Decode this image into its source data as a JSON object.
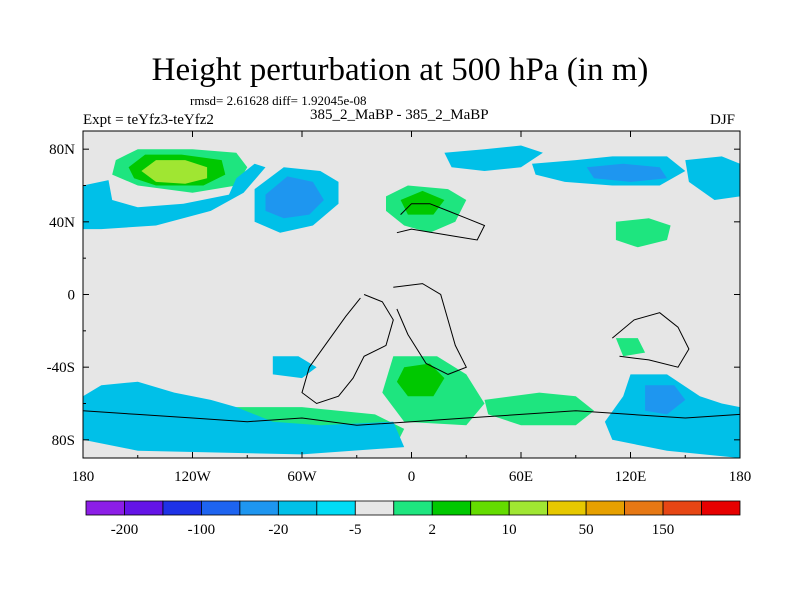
{
  "title": "Height perturbation at 500 hPa (in m)",
  "stats": "rmsd= 2.61628 diff= 1.92045e-08",
  "expt": "Expt = teYfz3-teYfz2",
  "case": "385_2_MaBP - 385_2_MaBP",
  "season": "DJF",
  "map": {
    "lon_range": [
      -180,
      180
    ],
    "lat_range": [
      -90,
      90
    ],
    "background_color": "#e6e6e6",
    "x_ticks": [
      {
        "lon": -180,
        "label": "180"
      },
      {
        "lon": -120,
        "label": "120W"
      },
      {
        "lon": -60,
        "label": "60W"
      },
      {
        "lon": 0,
        "label": "0"
      },
      {
        "lon": 60,
        "label": "60E"
      },
      {
        "lon": 120,
        "label": "120E"
      },
      {
        "lon": 180,
        "label": "180"
      }
    ],
    "y_ticks": [
      {
        "lat": 80,
        "label": "80N"
      },
      {
        "lat": 40,
        "label": "40N"
      },
      {
        "lat": 0,
        "label": "0"
      },
      {
        "lat": -40,
        "label": "-40S"
      },
      {
        "lat": -80,
        "label": "80S"
      }
    ],
    "regions": [
      {
        "name": "north-pacific-high",
        "color": "#1ee57f",
        "points": [
          [
            -162,
            74
          ],
          [
            -150,
            80
          ],
          [
            -120,
            80
          ],
          [
            -96,
            78
          ],
          [
            -90,
            70
          ],
          [
            -96,
            60
          ],
          [
            -120,
            56
          ],
          [
            -150,
            60
          ],
          [
            -164,
            66
          ]
        ]
      },
      {
        "name": "north-pacific-high-inner",
        "color": "#00c800",
        "points": [
          [
            -155,
            70
          ],
          [
            -146,
            77
          ],
          [
            -126,
            77
          ],
          [
            -104,
            74
          ],
          [
            -102,
            66
          ],
          [
            -114,
            60
          ],
          [
            -140,
            60
          ],
          [
            -152,
            64
          ]
        ]
      },
      {
        "name": "north-pacific-high-core",
        "color": "#a0e632",
        "points": [
          [
            -148,
            68
          ],
          [
            -140,
            74
          ],
          [
            -124,
            74
          ],
          [
            -112,
            70
          ],
          [
            -112,
            64
          ],
          [
            -124,
            61
          ],
          [
            -140,
            62
          ]
        ]
      },
      {
        "name": "north-pacific-band",
        "color": "#00c0e8",
        "points": [
          [
            -180,
            60
          ],
          [
            -166,
            63
          ],
          [
            -164,
            52
          ],
          [
            -150,
            48
          ],
          [
            -125,
            50
          ],
          [
            -100,
            55
          ],
          [
            -96,
            64
          ],
          [
            -86,
            72
          ],
          [
            -80,
            70
          ],
          [
            -92,
            56
          ],
          [
            -110,
            46
          ],
          [
            -140,
            38
          ],
          [
            -170,
            36
          ],
          [
            -180,
            36
          ]
        ]
      },
      {
        "name": "north-america-low",
        "color": "#00c0e8",
        "points": [
          [
            -86,
            58
          ],
          [
            -70,
            70
          ],
          [
            -50,
            68
          ],
          [
            -40,
            62
          ],
          [
            -40,
            50
          ],
          [
            -54,
            38
          ],
          [
            -72,
            34
          ],
          [
            -86,
            40
          ]
        ]
      },
      {
        "name": "north-america-low-core",
        "color": "#1e96f0",
        "points": [
          [
            -80,
            55
          ],
          [
            -68,
            65
          ],
          [
            -54,
            62
          ],
          [
            -48,
            52
          ],
          [
            -56,
            44
          ],
          [
            -70,
            42
          ],
          [
            -80,
            46
          ]
        ]
      },
      {
        "name": "europe-high",
        "color": "#1ee57f",
        "points": [
          [
            -14,
            54
          ],
          [
            -2,
            60
          ],
          [
            20,
            58
          ],
          [
            30,
            52
          ],
          [
            24,
            40
          ],
          [
            10,
            34
          ],
          [
            -4,
            38
          ],
          [
            -14,
            46
          ]
        ]
      },
      {
        "name": "europe-high-core",
        "color": "#00c800",
        "points": [
          [
            -6,
            52
          ],
          [
            6,
            57
          ],
          [
            18,
            52
          ],
          [
            12,
            44
          ],
          [
            -2,
            44
          ]
        ]
      },
      {
        "name": "arctic-low",
        "color": "#00c0e8",
        "points": [
          [
            18,
            78
          ],
          [
            40,
            80
          ],
          [
            60,
            82
          ],
          [
            72,
            78
          ],
          [
            60,
            70
          ],
          [
            40,
            68
          ],
          [
            22,
            70
          ]
        ]
      },
      {
        "name": "asia-low",
        "color": "#00c0e8",
        "points": [
          [
            66,
            72
          ],
          [
            90,
            74
          ],
          [
            110,
            76
          ],
          [
            140,
            76
          ],
          [
            150,
            68
          ],
          [
            136,
            60
          ],
          [
            110,
            60
          ],
          [
            84,
            62
          ],
          [
            68,
            66
          ]
        ]
      },
      {
        "name": "asia-low-core",
        "color": "#1e96f0",
        "points": [
          [
            96,
            70
          ],
          [
            116,
            72
          ],
          [
            136,
            70
          ],
          [
            140,
            64
          ],
          [
            120,
            62
          ],
          [
            100,
            64
          ]
        ]
      },
      {
        "name": "east-arctic-low",
        "color": "#00c0e8",
        "points": [
          [
            150,
            74
          ],
          [
            170,
            76
          ],
          [
            180,
            72
          ],
          [
            180,
            54
          ],
          [
            166,
            52
          ],
          [
            152,
            62
          ]
        ]
      },
      {
        "name": "nw-pacific-high",
        "color": "#1ee57f",
        "points": [
          [
            112,
            40
          ],
          [
            130,
            42
          ],
          [
            142,
            38
          ],
          [
            140,
            30
          ],
          [
            124,
            26
          ],
          [
            112,
            30
          ]
        ]
      },
      {
        "name": "south-atlantic-low",
        "color": "#00c0e8",
        "points": [
          [
            -76,
            -34
          ],
          [
            -62,
            -34
          ],
          [
            -52,
            -40
          ],
          [
            -60,
            -46
          ],
          [
            -76,
            -44
          ]
        ]
      },
      {
        "name": "southern-ocean-high",
        "color": "#1ee57f",
        "points": [
          [
            -164,
            -66
          ],
          [
            -150,
            -64
          ],
          [
            -110,
            -62
          ],
          [
            -60,
            -62
          ],
          [
            -20,
            -66
          ],
          [
            -4,
            -74
          ],
          [
            -8,
            -82
          ],
          [
            -40,
            -80
          ],
          [
            -100,
            -76
          ],
          [
            -150,
            -76
          ],
          [
            -166,
            -72
          ]
        ]
      },
      {
        "name": "southern-ocean-low",
        "color": "#00c0e8",
        "points": [
          [
            -170,
            -50
          ],
          [
            -150,
            -48
          ],
          [
            -130,
            -54
          ],
          [
            -110,
            -58
          ],
          [
            -96,
            -62
          ],
          [
            -76,
            -70
          ],
          [
            -50,
            -72
          ],
          [
            -10,
            -70
          ],
          [
            -4,
            -84
          ],
          [
            -60,
            -88
          ],
          [
            -150,
            -86
          ],
          [
            -180,
            -80
          ],
          [
            -180,
            -56
          ]
        ]
      },
      {
        "name": "south-atlantic-high",
        "color": "#1ee57f",
        "points": [
          [
            -10,
            -34
          ],
          [
            14,
            -34
          ],
          [
            30,
            -44
          ],
          [
            40,
            -60
          ],
          [
            30,
            -72
          ],
          [
            -4,
            -70
          ],
          [
            -16,
            -54
          ]
        ]
      },
      {
        "name": "south-atlantic-high-core",
        "color": "#00c800",
        "points": [
          [
            -4,
            -40
          ],
          [
            10,
            -38
          ],
          [
            18,
            -46
          ],
          [
            12,
            -56
          ],
          [
            -2,
            -56
          ],
          [
            -8,
            -48
          ]
        ]
      },
      {
        "name": "south-indian-high",
        "color": "#1ee57f",
        "points": [
          [
            40,
            -58
          ],
          [
            70,
            -54
          ],
          [
            90,
            -56
          ],
          [
            100,
            -64
          ],
          [
            90,
            -72
          ],
          [
            60,
            -72
          ],
          [
            42,
            -66
          ]
        ]
      },
      {
        "name": "south-pacific-low",
        "color": "#00c0e8",
        "points": [
          [
            120,
            -44
          ],
          [
            140,
            -44
          ],
          [
            158,
            -56
          ],
          [
            170,
            -60
          ],
          [
            180,
            -62
          ],
          [
            180,
            -90
          ],
          [
            140,
            -86
          ],
          [
            110,
            -80
          ],
          [
            106,
            -70
          ],
          [
            116,
            -56
          ]
        ]
      },
      {
        "name": "south-pacific-low-core",
        "color": "#1e96f0",
        "points": [
          [
            128,
            -50
          ],
          [
            144,
            -50
          ],
          [
            150,
            -58
          ],
          [
            140,
            -66
          ],
          [
            128,
            -64
          ]
        ]
      },
      {
        "name": "indian-ocean-high",
        "color": "#1ee57f",
        "points": [
          [
            112,
            -24
          ],
          [
            124,
            -24
          ],
          [
            128,
            -32
          ],
          [
            116,
            -34
          ]
        ]
      }
    ],
    "coastlines": [
      {
        "name": "north-africa-europe-coast",
        "points": [
          [
            -6,
            44
          ],
          [
            0,
            50
          ],
          [
            10,
            50
          ],
          [
            20,
            46
          ],
          [
            30,
            42
          ],
          [
            40,
            38
          ],
          [
            36,
            30
          ],
          [
            24,
            32
          ],
          [
            12,
            34
          ],
          [
            0,
            36
          ],
          [
            -8,
            34
          ]
        ]
      },
      {
        "name": "south-america-coast",
        "points": [
          [
            -26,
            0
          ],
          [
            -16,
            -4
          ],
          [
            -10,
            -14
          ],
          [
            -14,
            -28
          ],
          [
            -26,
            -34
          ],
          [
            -32,
            -46
          ],
          [
            -40,
            -56
          ],
          [
            -52,
            -60
          ],
          [
            -60,
            -54
          ],
          [
            -56,
            -40
          ],
          [
            -46,
            -26
          ],
          [
            -36,
            -12
          ],
          [
            -28,
            -2
          ]
        ]
      },
      {
        "name": "africa-coast",
        "points": [
          [
            -10,
            4
          ],
          [
            6,
            6
          ],
          [
            16,
            0
          ],
          [
            20,
            -14
          ],
          [
            24,
            -28
          ],
          [
            30,
            -40
          ],
          [
            20,
            -44
          ],
          [
            8,
            -38
          ],
          [
            -2,
            -22
          ],
          [
            -8,
            -8
          ]
        ]
      },
      {
        "name": "australia-coast",
        "points": [
          [
            110,
            -24
          ],
          [
            122,
            -14
          ],
          [
            136,
            -10
          ],
          [
            146,
            -18
          ],
          [
            152,
            -30
          ],
          [
            146,
            -40
          ],
          [
            130,
            -36
          ],
          [
            114,
            -34
          ]
        ]
      },
      {
        "name": "antarctica-coast",
        "points": [
          [
            -180,
            -64
          ],
          [
            -150,
            -66
          ],
          [
            -120,
            -68
          ],
          [
            -90,
            -70
          ],
          [
            -60,
            -68
          ],
          [
            -30,
            -72
          ],
          [
            0,
            -70
          ],
          [
            30,
            -68
          ],
          [
            60,
            -66
          ],
          [
            90,
            -64
          ],
          [
            120,
            -66
          ],
          [
            150,
            -68
          ],
          [
            180,
            -66
          ]
        ]
      }
    ]
  },
  "colorbar": {
    "colors": [
      "#8c1ee6",
      "#6414e6",
      "#1e32e6",
      "#1e64f0",
      "#1e96f0",
      "#00c0e8",
      "#00dcf5",
      "#e6e6e6",
      "#1ee57f",
      "#00c800",
      "#64dc00",
      "#a0e632",
      "#e6c800",
      "#e6a000",
      "#e67814",
      "#e64614",
      "#e60000"
    ],
    "labels": [
      "-200",
      "-100",
      "-20",
      "-5",
      "2",
      "10",
      "50",
      "150"
    ]
  }
}
